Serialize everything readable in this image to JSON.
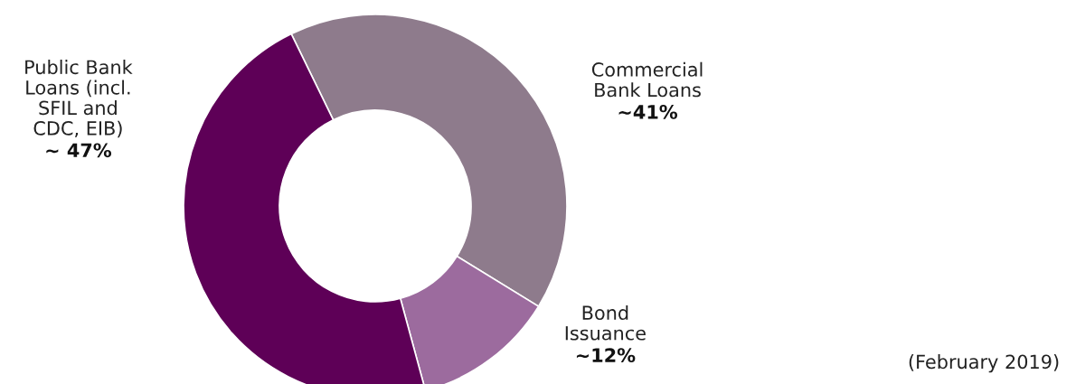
{
  "chart_data": {
    "type": "donut",
    "categories": [
      "Commercial\nBank Loans",
      "Bond\nIssuance",
      "Public Bank\nLoans (incl.\nSFIL and\nCDC, EIB)"
    ],
    "values": [
      41,
      12,
      47
    ],
    "colors": [
      "#8e7b8c",
      "#9c6b9e",
      "#5e0057"
    ],
    "value_labels": [
      "~41%",
      "~12%",
      "~ 47%"
    ],
    "annotations": [
      "(February 2019)"
    ]
  }
}
